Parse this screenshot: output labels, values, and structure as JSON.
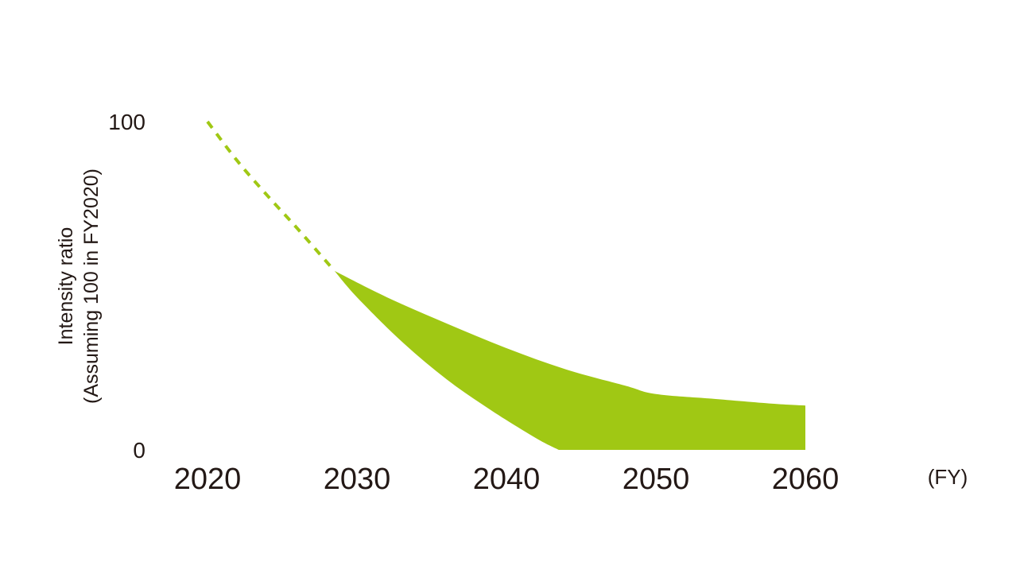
{
  "chart_data": {
    "type": "area",
    "ylabel_lines": [
      "Intensity ratio",
      "(Assuming 100 in FY2020)"
    ],
    "xlabel": "(FY)",
    "x_ticks": [
      "2020",
      "2030",
      "2040",
      "2050",
      "2060"
    ],
    "y_ticks": [
      "0",
      "100"
    ],
    "xlim": [
      2020,
      2060
    ],
    "ylim": [
      0,
      100
    ],
    "grid": false,
    "legend": "none",
    "colors": {
      "series": "#a0c814",
      "text": "#231815",
      "dashed_line": "#a0c814"
    },
    "series": [
      {
        "style": "dashed-line",
        "x": [
          2020,
          2022,
          2024,
          2026,
          2028.5
        ],
        "y": [
          100,
          88,
          77.5,
          67.5,
          54.5
        ]
      },
      {
        "style": "band-upper",
        "x": [
          2028.5,
          2032,
          2036,
          2040,
          2044,
          2048,
          2050,
          2054,
          2058,
          2060
        ],
        "y": [
          54.5,
          46.5,
          38.5,
          31,
          24.5,
          19.5,
          17,
          15.5,
          14,
          13.5
        ]
      },
      {
        "style": "band-lower",
        "x": [
          2028.5,
          2030,
          2033,
          2036,
          2039,
          2042,
          2043.5,
          2060
        ],
        "y": [
          54.5,
          46.5,
          33,
          21.5,
          12,
          3.5,
          0,
          0
        ]
      }
    ]
  }
}
